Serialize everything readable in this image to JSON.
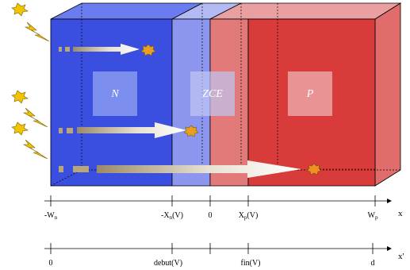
{
  "regions": [
    {
      "id": "n",
      "label": "N",
      "color": "#3a4fe0"
    },
    {
      "id": "zce",
      "label": "ZCE",
      "color": "#8c96ee"
    },
    {
      "id": "p",
      "label": "P",
      "color": "#d93a3a"
    }
  ],
  "axis_x": {
    "variable": "x",
    "ticks": [
      {
        "base": "-W",
        "sub": "n"
      },
      {
        "base": "-X",
        "sub": "n",
        "tail": "(V)"
      },
      {
        "base": "0",
        "sub": "",
        "tail": ""
      },
      {
        "base": "X",
        "sub": "p",
        "tail": "(V)"
      },
      {
        "base": "W",
        "sub": "p",
        "tail": ""
      }
    ]
  },
  "axis_x_prime": {
    "variable": "x'",
    "ticks": [
      "0",
      "debut(V)",
      "fin(V)",
      "d"
    ]
  },
  "icons": {
    "light": "lightning-bolt-icon",
    "star": "burst-star-icon",
    "arrow": "photon-arrow-icon"
  },
  "colors": {
    "n_region": "#3a4fe0",
    "zce_region": "#8c96ee",
    "p_region": "#d93a3a",
    "lightning": "#f2c400",
    "star": "#e8a020"
  }
}
